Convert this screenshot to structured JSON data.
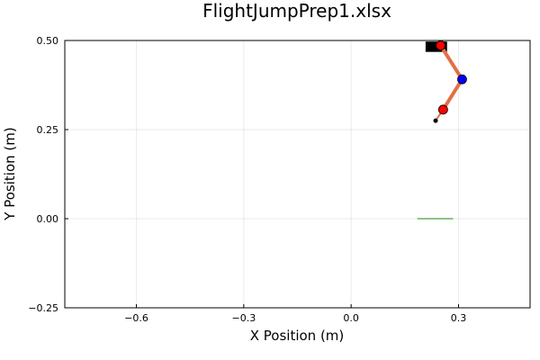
{
  "chart_data": {
    "type": "scatter",
    "title": "FlightJumpPrep1.xlsx",
    "xlabel": "X Position (m)",
    "ylabel": "Y Position (m)",
    "xlim": [
      -0.8,
      0.5
    ],
    "ylim": [
      -0.25,
      0.5
    ],
    "xticks": [
      -0.6,
      -0.3,
      0.0,
      0.3
    ],
    "xtick_labels": [
      "−0.6",
      "−0.3",
      "0.0",
      "0.3"
    ],
    "yticks": [
      -0.25,
      0.0,
      0.25,
      0.5
    ],
    "ytick_labels": [
      "−0.25",
      "0.00",
      "0.25",
      "0.50"
    ],
    "grid": true,
    "legend": "none",
    "colors": {
      "leg": "#e26f46",
      "hip_knee_ankle": "#ff0000",
      "knee": "#0000ff",
      "body": "#000000",
      "ground": "#8fc485",
      "toe": "#000000"
    },
    "body_block": {
      "x": [
        0.208,
        0.268
      ],
      "y": [
        0.468,
        0.497
      ]
    },
    "leg_segments": [
      {
        "x": [
          0.25,
          0.31
        ],
        "y": [
          0.486,
          0.391
        ]
      },
      {
        "x": [
          0.31,
          0.257
        ],
        "y": [
          0.391,
          0.306
        ]
      },
      {
        "x": [
          0.257,
          0.236
        ],
        "y": [
          0.306,
          0.275
        ]
      }
    ],
    "points": [
      {
        "role": "hip",
        "x": 0.25,
        "y": 0.486,
        "color": "#ff0000"
      },
      {
        "role": "knee",
        "x": 0.31,
        "y": 0.391,
        "color": "#0000ff"
      },
      {
        "role": "ankle",
        "x": 0.257,
        "y": 0.306,
        "color": "#ff0000"
      },
      {
        "role": "toe",
        "x": 0.236,
        "y": 0.275,
        "color": "#000000"
      }
    ],
    "ground_line": {
      "x": [
        0.185,
        0.285
      ],
      "y": [
        0.0,
        0.0
      ]
    }
  }
}
